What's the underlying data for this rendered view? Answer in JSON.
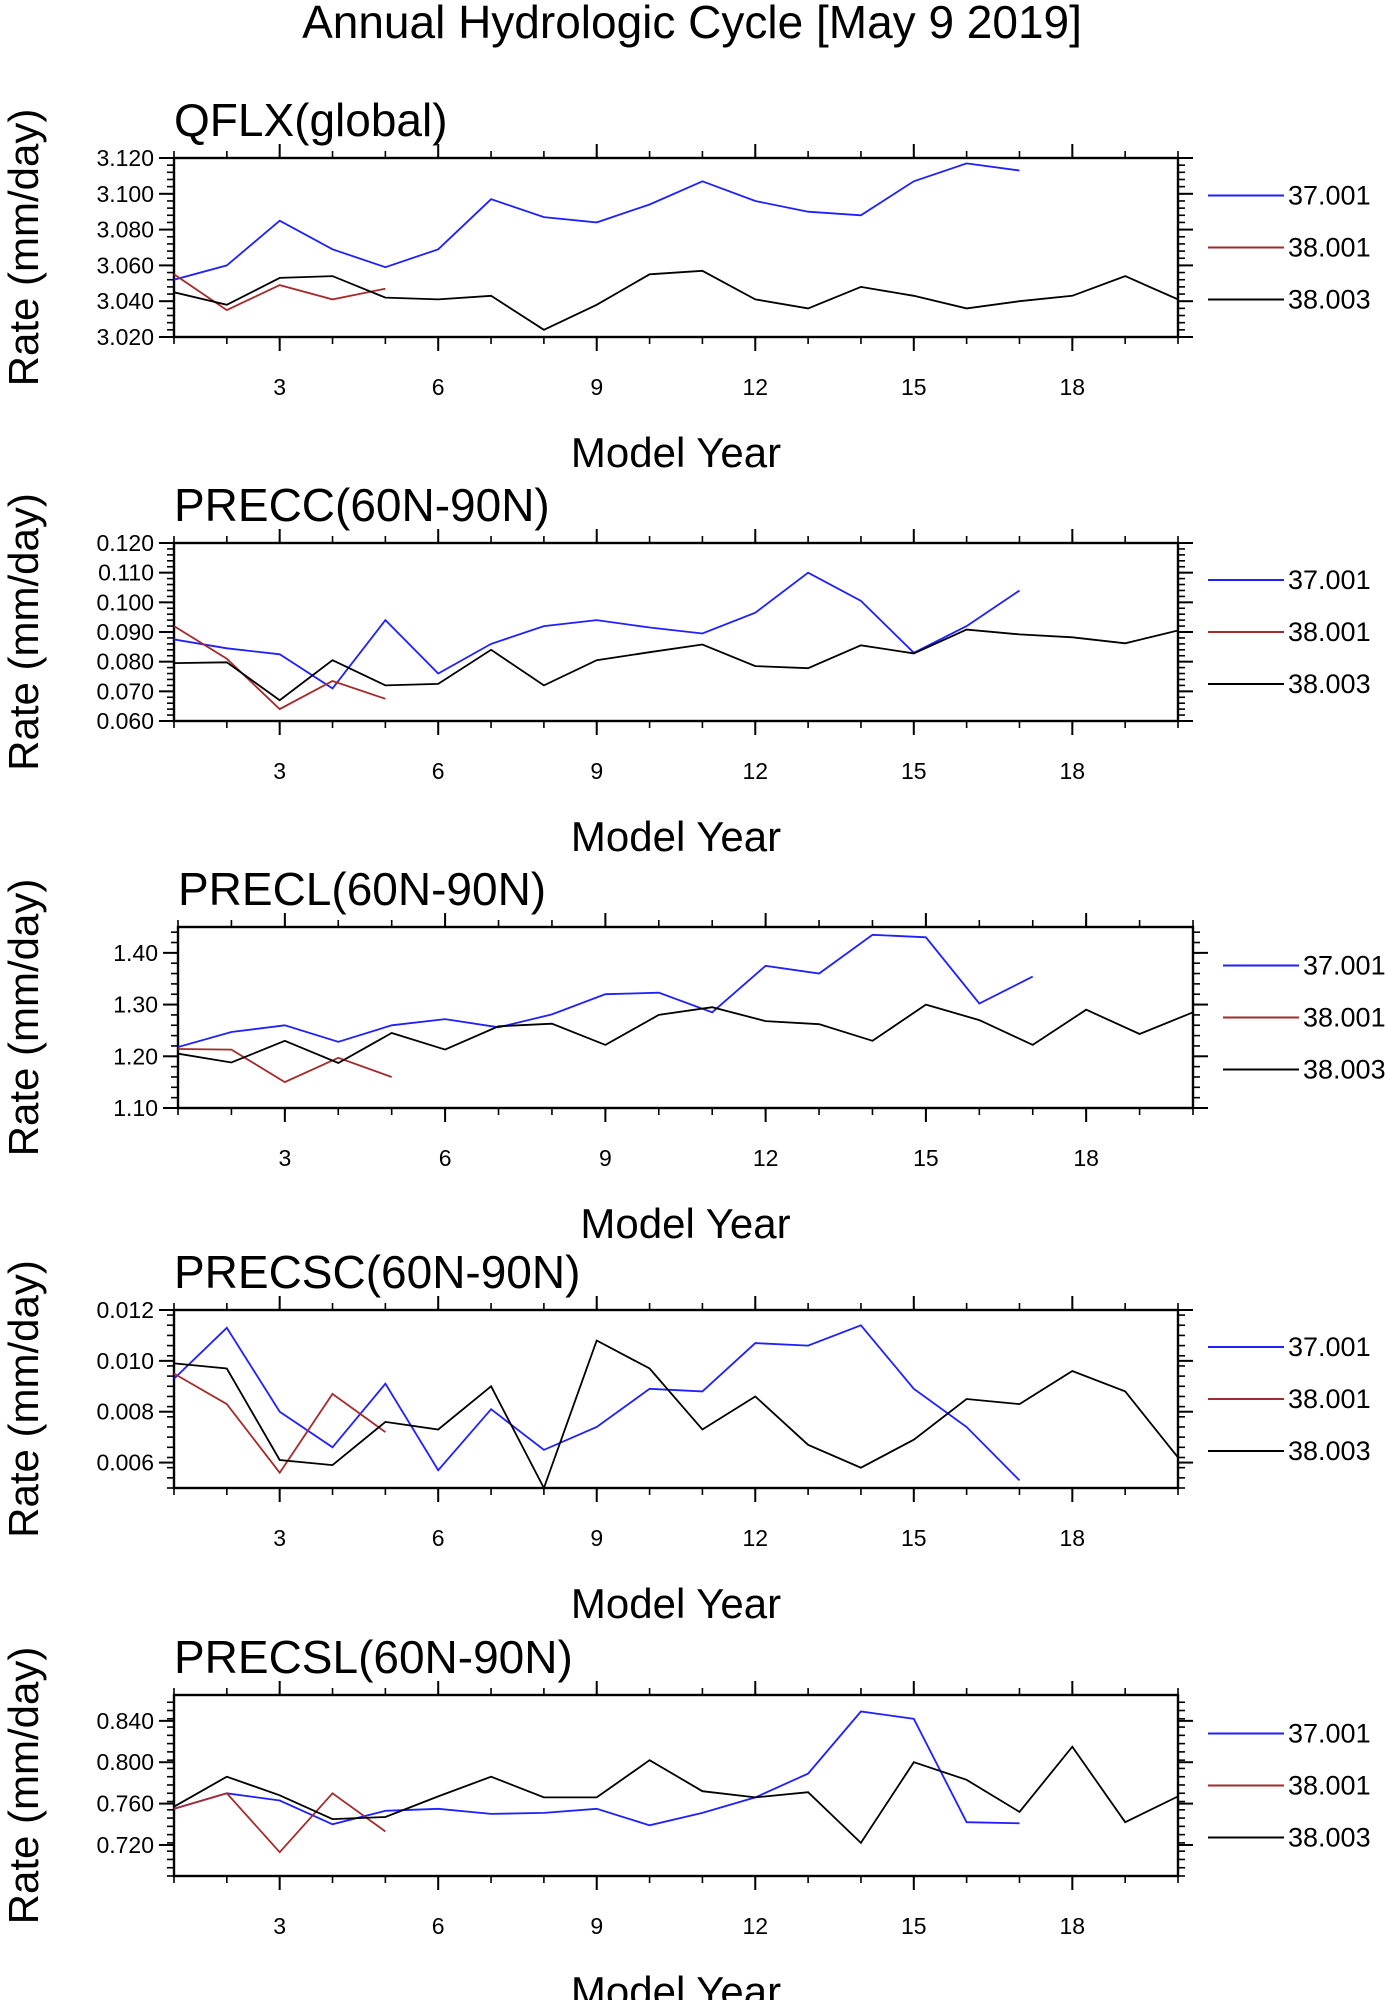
{
  "title": "Annual Hydrologic Cycle [May  9 2019]",
  "chart_data": [
    {
      "type": "line",
      "title": "QFLX(global)",
      "xlabel": "Model Year",
      "ylabel": "Rate (mm/day)",
      "xlim": [
        1,
        20
      ],
      "ylim": [
        3.02,
        3.12
      ],
      "yticks": [
        "3.020",
        "3.040",
        "3.060",
        "3.080",
        "3.100",
        "3.120"
      ],
      "xticks": [
        "3",
        "6",
        "9",
        "12",
        "15",
        "18"
      ],
      "series": [
        {
          "name": "37.001",
          "color": "#1f1fff",
          "x": [
            1,
            2,
            3,
            4,
            5,
            6,
            7,
            8,
            9,
            10,
            11,
            12,
            13,
            14,
            15,
            16,
            17
          ],
          "values": [
            3.052,
            3.06,
            3.085,
            3.069,
            3.059,
            3.069,
            3.097,
            3.087,
            3.084,
            3.094,
            3.107,
            3.096,
            3.09,
            3.088,
            3.107,
            3.117,
            3.113
          ]
        },
        {
          "name": "38.001",
          "color": "#a52a2a",
          "x": [
            1,
            2,
            3,
            4,
            5
          ],
          "values": [
            3.055,
            3.035,
            3.049,
            3.041,
            3.047
          ]
        },
        {
          "name": "38.003",
          "color": "#000000",
          "x": [
            1,
            2,
            3,
            4,
            5,
            6,
            7,
            8,
            9,
            10,
            11,
            12,
            13,
            14,
            15,
            16,
            17,
            18,
            19,
            20
          ],
          "values": [
            3.045,
            3.038,
            3.053,
            3.054,
            3.042,
            3.041,
            3.043,
            3.024,
            3.038,
            3.055,
            3.057,
            3.041,
            3.036,
            3.048,
            3.043,
            3.036,
            3.04,
            3.043,
            3.054,
            3.041
          ]
        }
      ]
    },
    {
      "type": "line",
      "title": "PRECC(60N-90N)",
      "xlabel": "Model Year",
      "ylabel": "Rate (mm/day)",
      "xlim": [
        1,
        20
      ],
      "ylim": [
        0.06,
        0.12
      ],
      "yticks": [
        "0.060",
        "0.070",
        "0.080",
        "0.090",
        "0.100",
        "0.110",
        "0.120"
      ],
      "xticks": [
        "3",
        "6",
        "9",
        "12",
        "15",
        "18"
      ],
      "series": [
        {
          "name": "37.001",
          "color": "#1f1fff",
          "x": [
            1,
            2,
            3,
            4,
            5,
            6,
            7,
            8,
            9,
            10,
            11,
            12,
            13,
            14,
            15,
            16,
            17
          ],
          "values": [
            0.0875,
            0.0845,
            0.0825,
            0.071,
            0.094,
            0.076,
            0.086,
            0.092,
            0.094,
            0.0915,
            0.0895,
            0.0965,
            0.11,
            0.1005,
            0.083,
            0.092,
            0.104
          ]
        },
        {
          "name": "38.001",
          "color": "#a52a2a",
          "x": [
            1,
            2,
            3,
            4,
            5
          ],
          "values": [
            0.092,
            0.081,
            0.064,
            0.0735,
            0.0675
          ]
        },
        {
          "name": "38.003",
          "color": "#000000",
          "x": [
            1,
            2,
            3,
            4,
            5,
            6,
            7,
            8,
            9,
            10,
            11,
            12,
            13,
            14,
            15,
            16,
            17,
            18,
            19,
            20
          ],
          "values": [
            0.0795,
            0.0798,
            0.067,
            0.0805,
            0.072,
            0.0725,
            0.084,
            0.072,
            0.0805,
            0.0832,
            0.0858,
            0.0785,
            0.0778,
            0.0855,
            0.0828,
            0.0908,
            0.0892,
            0.0882,
            0.0862,
            0.0905
          ]
        }
      ]
    },
    {
      "type": "line",
      "title": "PRECL(60N-90N)",
      "xlabel": "Model Year",
      "ylabel": "Rate (mm/day)",
      "xlim": [
        1,
        20
      ],
      "ylim": [
        1.1,
        1.45
      ],
      "yticks": [
        "1.10",
        "1.20",
        "1.30",
        "1.40"
      ],
      "xticks": [
        "3",
        "6",
        "9",
        "12",
        "15",
        "18"
      ],
      "series": [
        {
          "name": "37.001",
          "color": "#1f1fff",
          "x": [
            1,
            2,
            3,
            4,
            5,
            6,
            7,
            8,
            9,
            10,
            11,
            12,
            13,
            14,
            15,
            16,
            17
          ],
          "values": [
            1.218,
            1.247,
            1.26,
            1.228,
            1.26,
            1.272,
            1.256,
            1.281,
            1.32,
            1.323,
            1.285,
            1.375,
            1.36,
            1.435,
            1.43,
            1.302,
            1.354
          ]
        },
        {
          "name": "38.001",
          "color": "#a52a2a",
          "x": [
            1,
            2,
            3,
            4,
            5
          ],
          "values": [
            1.214,
            1.213,
            1.15,
            1.197,
            1.16
          ]
        },
        {
          "name": "38.003",
          "color": "#000000",
          "x": [
            1,
            2,
            3,
            4,
            5,
            6,
            7,
            8,
            9,
            10,
            11,
            12,
            13,
            14,
            15,
            16,
            17,
            18,
            19,
            20
          ],
          "values": [
            1.205,
            1.188,
            1.23,
            1.187,
            1.245,
            1.213,
            1.258,
            1.263,
            1.222,
            1.28,
            1.295,
            1.268,
            1.262,
            1.23,
            1.3,
            1.27,
            1.222,
            1.29,
            1.243,
            1.285
          ]
        }
      ]
    },
    {
      "type": "line",
      "title": "PRECSC(60N-90N)",
      "xlabel": "Model Year",
      "ylabel": "Rate (mm/day)",
      "xlim": [
        1,
        20
      ],
      "ylim": [
        0.005,
        0.012
      ],
      "yticks": [
        "0.006",
        "0.008",
        "0.010",
        "0.012"
      ],
      "xticks": [
        "3",
        "6",
        "9",
        "12",
        "15",
        "18"
      ],
      "series": [
        {
          "name": "37.001",
          "color": "#1f1fff",
          "x": [
            1,
            2,
            3,
            4,
            5,
            6,
            7,
            8,
            9,
            10,
            11,
            12,
            13,
            14,
            15,
            16,
            17
          ],
          "values": [
            0.0093,
            0.0113,
            0.008,
            0.0066,
            0.0091,
            0.0057,
            0.0081,
            0.0065,
            0.0074,
            0.0089,
            0.0088,
            0.0107,
            0.0106,
            0.0114,
            0.0089,
            0.0074,
            0.0053
          ]
        },
        {
          "name": "38.001",
          "color": "#a52a2a",
          "x": [
            1,
            2,
            3,
            4,
            5
          ],
          "values": [
            0.0095,
            0.0083,
            0.0056,
            0.0087,
            0.0072
          ]
        },
        {
          "name": "38.003",
          "color": "#000000",
          "x": [
            1,
            2,
            3,
            4,
            5,
            6,
            7,
            8,
            9,
            10,
            11,
            12,
            13,
            14,
            15,
            16,
            17,
            18,
            19,
            20
          ],
          "values": [
            0.0099,
            0.0097,
            0.0061,
            0.0059,
            0.0076,
            0.0073,
            0.009,
            0.005,
            0.0108,
            0.0097,
            0.0073,
            0.0086,
            0.0067,
            0.0058,
            0.0069,
            0.0085,
            0.0083,
            0.0096,
            0.0088,
            0.0062
          ]
        }
      ]
    },
    {
      "type": "line",
      "title": "PRECSL(60N-90N)",
      "xlabel": "Model Year",
      "ylabel": "Rate (mm/day)",
      "xlim": [
        1,
        20
      ],
      "ylim": [
        0.69,
        0.865
      ],
      "yticks": [
        "0.720",
        "0.760",
        "0.800",
        "0.840"
      ],
      "xticks": [
        "3",
        "6",
        "9",
        "12",
        "15",
        "18"
      ],
      "series": [
        {
          "name": "37.001",
          "color": "#1f1fff",
          "x": [
            1,
            2,
            3,
            4,
            5,
            6,
            7,
            8,
            9,
            10,
            11,
            12,
            13,
            14,
            15,
            16,
            17
          ],
          "values": [
            0.755,
            0.77,
            0.763,
            0.74,
            0.753,
            0.755,
            0.75,
            0.751,
            0.755,
            0.739,
            0.751,
            0.766,
            0.789,
            0.849,
            0.842,
            0.742,
            0.741
          ]
        },
        {
          "name": "38.001",
          "color": "#a52a2a",
          "x": [
            1,
            2,
            3,
            4,
            5
          ],
          "values": [
            0.755,
            0.77,
            0.713,
            0.77,
            0.733
          ]
        },
        {
          "name": "38.003",
          "color": "#000000",
          "x": [
            1,
            2,
            3,
            4,
            5,
            6,
            7,
            8,
            9,
            10,
            11,
            12,
            13,
            14,
            15,
            16,
            17,
            18,
            19,
            20
          ],
          "values": [
            0.757,
            0.786,
            0.768,
            0.745,
            0.747,
            0.767,
            0.786,
            0.766,
            0.766,
            0.802,
            0.772,
            0.766,
            0.771,
            0.722,
            0.8,
            0.783,
            0.752,
            0.815,
            0.742,
            0.767
          ]
        }
      ]
    }
  ]
}
